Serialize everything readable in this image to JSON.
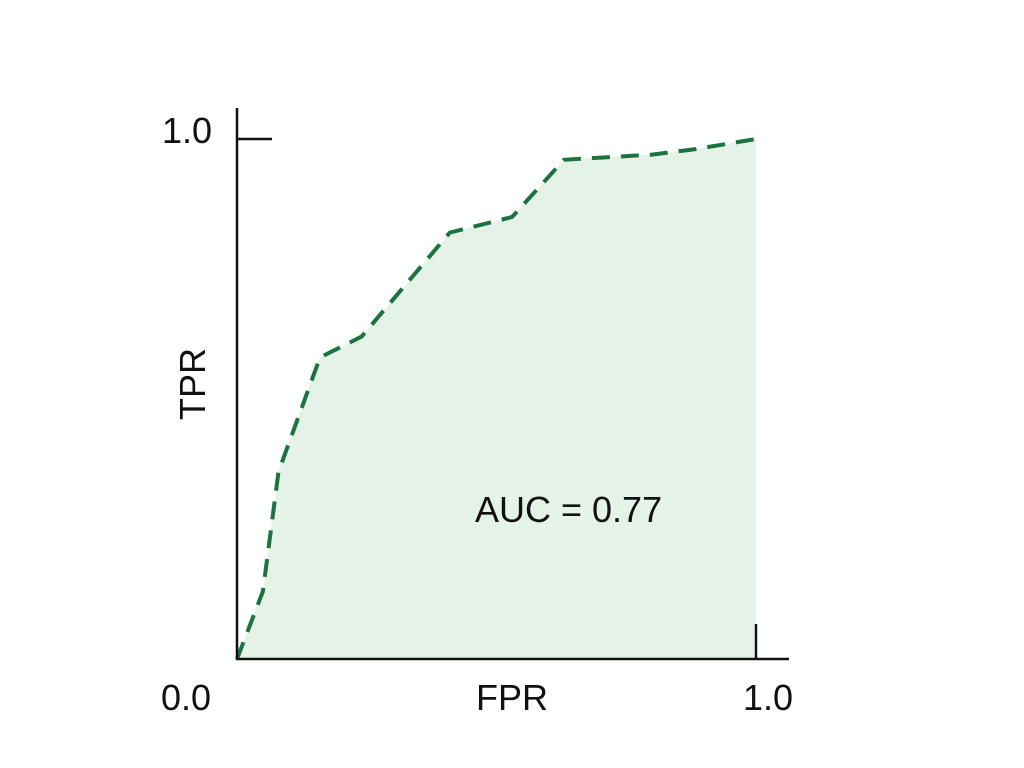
{
  "chart_data": {
    "type": "area",
    "title": "",
    "xlabel": "FPR",
    "ylabel": "TPR",
    "xlim": [
      0,
      1
    ],
    "ylim": [
      0,
      1
    ],
    "x_tick_labels": [
      "0.0",
      "1.0"
    ],
    "y_tick_labels": [
      "1.0"
    ],
    "grid": false,
    "series": [
      {
        "x": [
          0,
          0.05,
          0.08,
          0.16,
          0.24,
          0.41,
          0.53,
          0.63,
          0.8,
          0.88,
          1.0
        ],
        "y": [
          0,
          0.13,
          0.36,
          0.58,
          0.62,
          0.82,
          0.85,
          0.96,
          0.97,
          0.98,
          1.0
        ],
        "line_style": "dashed",
        "line_color": "#1b7340",
        "fill_color": "#e5f2e7"
      }
    ],
    "annotation": "AUC = 0.77"
  }
}
